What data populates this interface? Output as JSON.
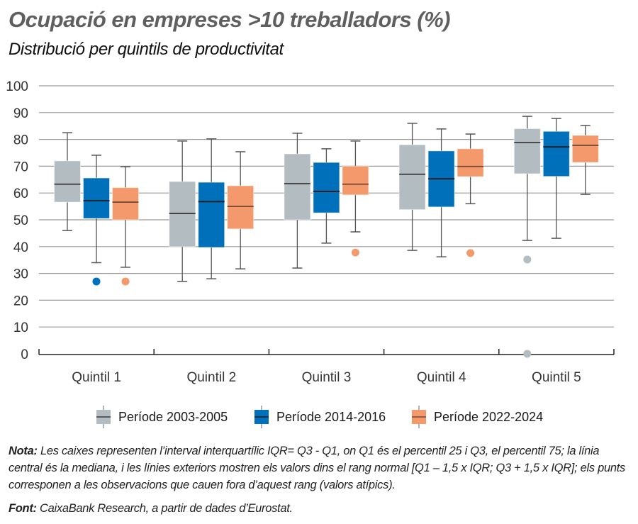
{
  "header": {
    "title": "Ocupació en empreses >10 treballadors (%)",
    "subtitle": "Distribució per quintils de productivitat"
  },
  "colors": {
    "period_2003_2005": "#B2BCC1",
    "period_2014_2016": "#0070BA",
    "period_2022_2024": "#F4996B",
    "median_line": "#3a3a3a",
    "whisker": "#555555",
    "grid": "#9a9a9a"
  },
  "legend": {
    "items": [
      {
        "label": "Període 2003-2005",
        "color": "#B2BCC1"
      },
      {
        "label": "Període 2014-2016",
        "color": "#0070BA"
      },
      {
        "label": "Període 2022-2024",
        "color": "#F4996B"
      }
    ]
  },
  "footer": {
    "note_label": "Nota:",
    "note_text": " Les caixes representen l’interval interquartílic IQR= Q3 - Q1, on Q1 és el percentil 25 i Q3, el percentil 75; la línia central és la mediana, i les línies exteriors mostren els valors dins el rang normal [Q1 – 1,5 x IQR; Q3 + 1,5 x IQR]; els punts corresponen a les observacions que cauen fora d’aquest rang (valors atípics).",
    "source_label": "Font:",
    "source_text": " CaixaBank Research, a partir de dades d’Eurostat."
  },
  "chart_data": {
    "type": "boxplot",
    "title": "Ocupació en empreses >10 treballadors (%)",
    "subtitle": "Distribució per quintils de productivitat",
    "xlabel": "",
    "ylabel": "",
    "ylim": [
      0,
      100
    ],
    "yticks": [
      0,
      10,
      20,
      30,
      40,
      50,
      60,
      70,
      80,
      90,
      100
    ],
    "grid": true,
    "legend_position": "bottom",
    "categories": [
      "Quintil 1",
      "Quintil 2",
      "Quintil 3",
      "Quintil 4",
      "Quintil 5"
    ],
    "series": [
      {
        "name": "Període 2003-2005",
        "color": "#B2BCC1",
        "boxes": [
          {
            "whisker_low": 46.0,
            "q1": 56.6,
            "median": 63.3,
            "q3": 72.0,
            "whisker_high": 82.5,
            "outliers": []
          },
          {
            "whisker_low": 27.0,
            "q1": 40.0,
            "median": 52.4,
            "q3": 64.3,
            "whisker_high": 79.4,
            "outliers": []
          },
          {
            "whisker_low": 32.0,
            "q1": 50.0,
            "median": 63.5,
            "q3": 74.6,
            "whisker_high": 82.3,
            "outliers": []
          },
          {
            "whisker_low": 38.6,
            "q1": 53.8,
            "median": 67.0,
            "q3": 78.0,
            "whisker_high": 86.0,
            "outliers": []
          },
          {
            "whisker_low": 42.3,
            "q1": 67.2,
            "median": 78.8,
            "q3": 84.0,
            "whisker_high": 88.6,
            "outliers": [
              35.2,
              0.0
            ]
          }
        ]
      },
      {
        "name": "Període 2014-2016",
        "color": "#0070BA",
        "boxes": [
          {
            "whisker_low": 34.0,
            "q1": 50.5,
            "median": 57.1,
            "q3": 65.6,
            "whisker_high": 74.1,
            "outliers": [
              27.0
            ]
          },
          {
            "whisker_low": 28.0,
            "q1": 39.7,
            "median": 56.8,
            "q3": 64.0,
            "whisker_high": 80.2,
            "outliers": []
          },
          {
            "whisker_low": 41.3,
            "q1": 52.6,
            "median": 60.6,
            "q3": 71.4,
            "whisker_high": 76.5,
            "outliers": []
          },
          {
            "whisker_low": 36.2,
            "q1": 54.8,
            "median": 65.3,
            "q3": 75.7,
            "whisker_high": 83.9,
            "outliers": []
          },
          {
            "whisker_low": 43.1,
            "q1": 66.2,
            "median": 77.2,
            "q3": 83.0,
            "whisker_high": 87.8,
            "outliers": []
          }
        ]
      },
      {
        "name": "Període 2022-2024",
        "color": "#F4996B",
        "boxes": [
          {
            "whisker_low": 32.3,
            "q1": 50.0,
            "median": 56.6,
            "q3": 62.0,
            "whisker_high": 69.8,
            "outliers": [
              27.0
            ]
          },
          {
            "whisker_low": 31.7,
            "q1": 46.6,
            "median": 55.0,
            "q3": 62.7,
            "whisker_high": 75.4,
            "outliers": []
          },
          {
            "whisker_low": 45.5,
            "q1": 59.3,
            "median": 63.3,
            "q3": 70.0,
            "whisker_high": 79.4,
            "outliers": [
              37.8
            ]
          },
          {
            "whisker_low": 56.0,
            "q1": 66.1,
            "median": 69.9,
            "q3": 76.5,
            "whisker_high": 82.0,
            "outliers": [
              37.6
            ]
          },
          {
            "whisker_low": 59.5,
            "q1": 71.4,
            "median": 77.8,
            "q3": 81.5,
            "whisker_high": 85.2,
            "outliers": []
          }
        ]
      }
    ]
  }
}
